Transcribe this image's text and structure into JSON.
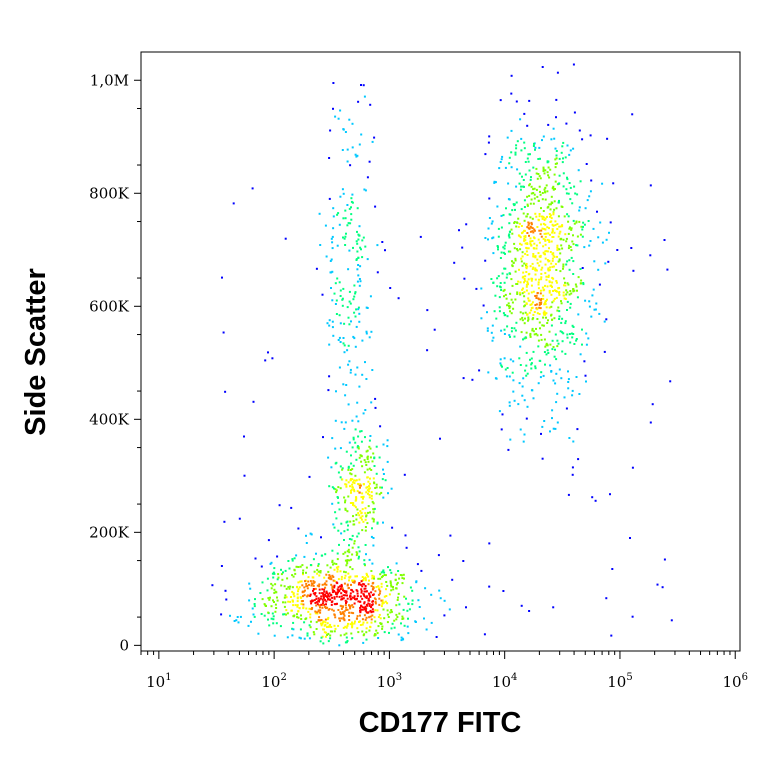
{
  "chart_data": {
    "type": "scatter",
    "style": "density-colored flow cytometry dot plot (blue → green → yellow → red as density increases)",
    "xlabel": "CD177 FITC",
    "ylabel": "Side Scatter",
    "x_scale": "log",
    "y_scale": "linear",
    "xlim": [
      7,
      1100000.0
    ],
    "ylim": [
      -10000,
      1050000
    ],
    "grid": false,
    "legend": "none",
    "x_ticks": [
      {
        "value": 10,
        "base": "10",
        "exp": "1"
      },
      {
        "value": 100,
        "base": "10",
        "exp": "2"
      },
      {
        "value": 1000,
        "base": "10",
        "exp": "3"
      },
      {
        "value": 10000,
        "base": "10",
        "exp": "4"
      },
      {
        "value": 100000,
        "base": "10",
        "exp": "5"
      },
      {
        "value": 1000000,
        "base": "10",
        "exp": "6"
      }
    ],
    "y_ticks": [
      {
        "value": 0,
        "label": "0"
      },
      {
        "value": 200000,
        "label": "200K"
      },
      {
        "value": 400000,
        "label": "400K"
      },
      {
        "value": 600000,
        "label": "600K"
      },
      {
        "value": 800000,
        "label": "800K"
      },
      {
        "value": 1000000,
        "label": "1,0M"
      }
    ],
    "populations": [
      {
        "center": [
          350,
          95000
        ],
        "spread_log10": [
          0.35,
          0.0
        ],
        "spread_y": 38000,
        "relative_count": 0.34,
        "peak_density": "high"
      },
      {
        "center": [
          550,
          280000
        ],
        "spread_log10": [
          0.12,
          0.0
        ],
        "spread_y": 55000,
        "relative_count": 0.1,
        "peak_density": "medium"
      },
      {
        "center": [
          450,
          650000
        ],
        "spread_log10": [
          0.12,
          0.0
        ],
        "spread_y": 190000,
        "relative_count": 0.09,
        "peak_density": "low"
      },
      {
        "center": [
          20000,
          680000
        ],
        "spread_log10": [
          0.22,
          0.0
        ],
        "spread_y": 120000,
        "relative_count": 0.39,
        "peak_density": "medium"
      }
    ],
    "colors": [
      "#0000ff",
      "#00c8ff",
      "#00ff80",
      "#80ff00",
      "#ffff00",
      "#ff8000",
      "#ff0000"
    ]
  }
}
